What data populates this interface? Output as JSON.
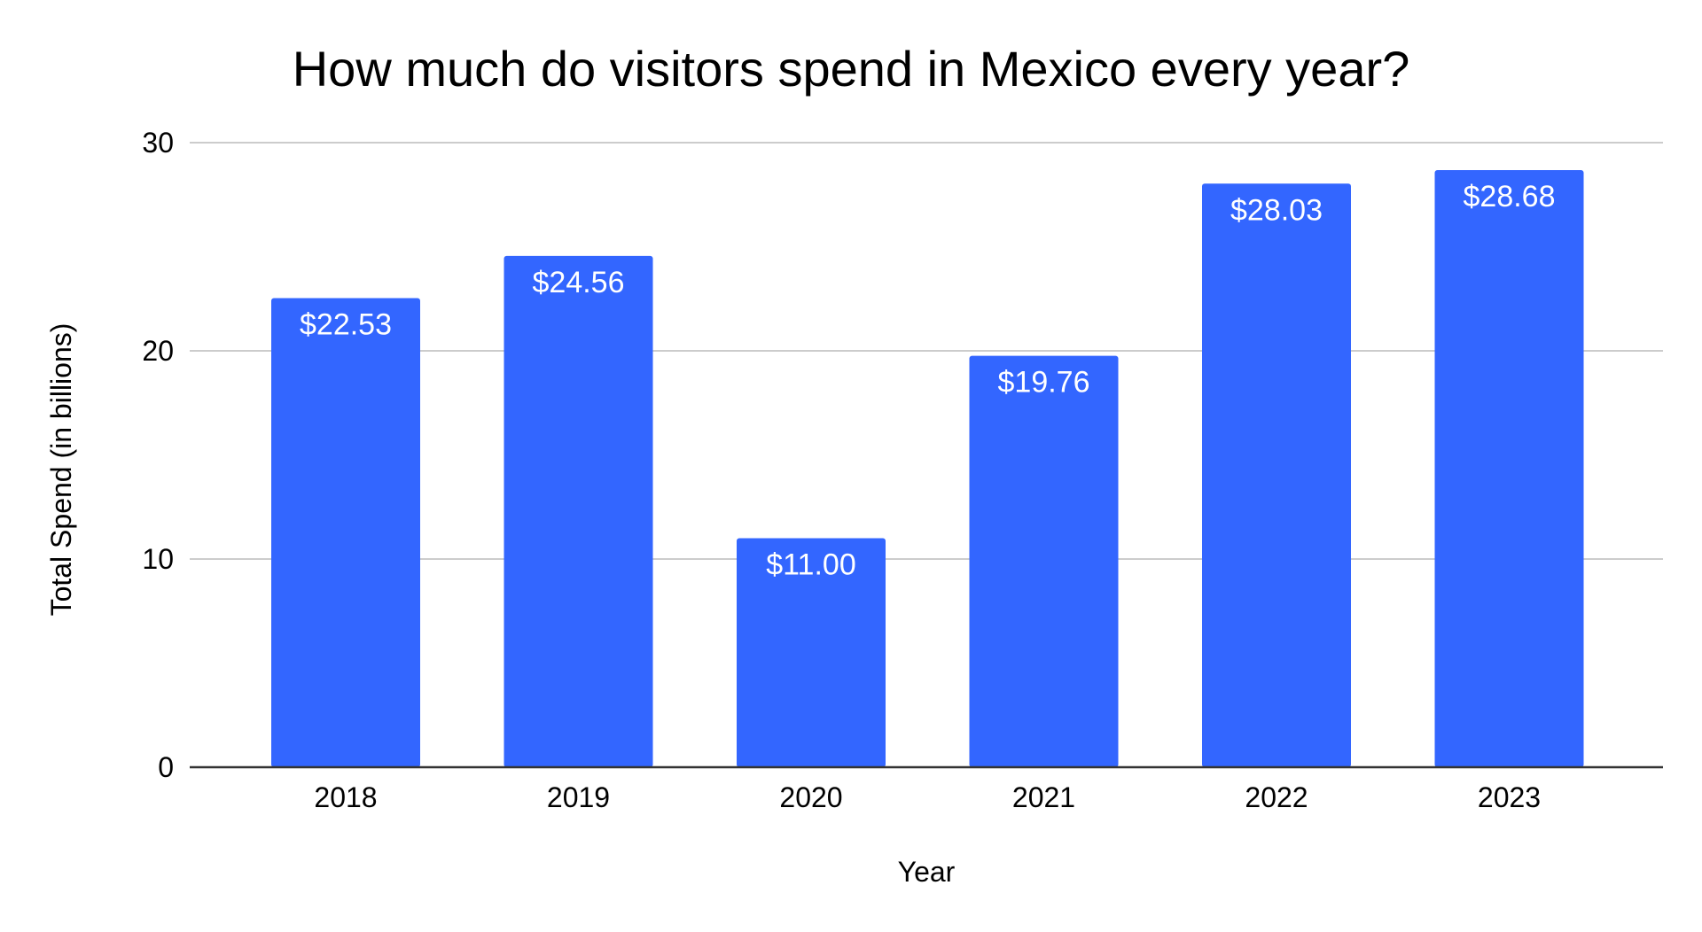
{
  "chart_data": {
    "type": "bar",
    "title": "How much do visitors spend in Mexico every year?",
    "xlabel": "Year",
    "ylabel": "Total Spend (in billions)",
    "categories": [
      "2018",
      "2019",
      "2020",
      "2021",
      "2022",
      "2023"
    ],
    "values": [
      22.53,
      24.56,
      11.0,
      19.76,
      28.03,
      28.68
    ],
    "data_labels": [
      "$22.53",
      "$24.56",
      "$11.00",
      "$19.76",
      "$28.03",
      "$28.68"
    ],
    "ylim": [
      0,
      30
    ],
    "yticks": [
      "0",
      "10",
      "20",
      "30"
    ],
    "ytick_values": [
      0,
      10,
      20,
      30
    ],
    "grid": true,
    "legend": "none",
    "bar_color": "#3366FF"
  }
}
